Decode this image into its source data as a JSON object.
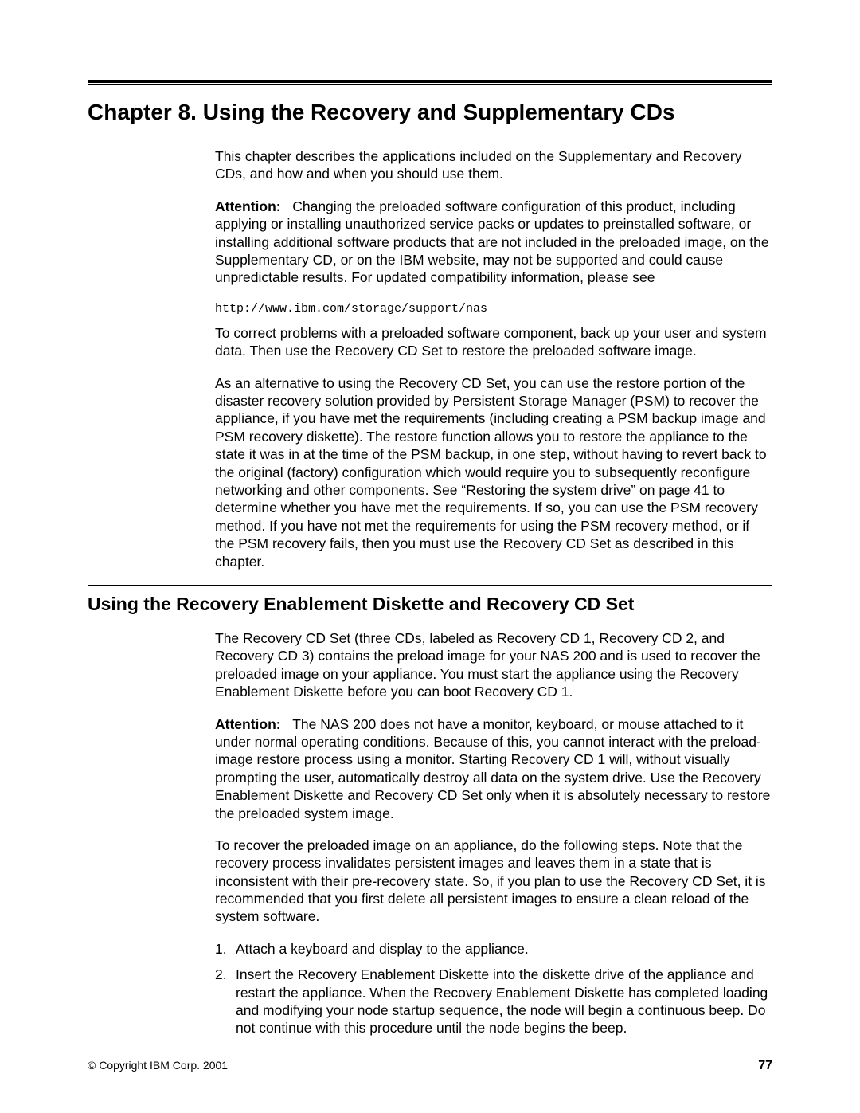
{
  "chapter": {
    "title": "Chapter 8. Using the Recovery and Supplementary CDs",
    "intro": "This chapter describes the applications included on the Supplementary and Recovery CDs, and how and when you should use them.",
    "attention1_label": "Attention:",
    "attention1_text": "Changing the preloaded software configuration of this product, including applying or installing unauthorized service packs or updates to preinstalled software, or installing additional software products that are not included in the preloaded image, on the Supplementary CD, or on the IBM website, may not be supported and could cause unpredictable results. For updated compatibility information, please see",
    "url": "http://www.ibm.com/storage/support/nas",
    "para2": "To correct problems with a preloaded software component, back up your user and system data. Then use the Recovery CD Set to restore the preloaded software image.",
    "para3": "As an alternative to using the Recovery CD Set, you can use the restore portion of the disaster recovery solution provided by Persistent Storage Manager (PSM) to recover the appliance, if you have met the requirements (including creating a PSM backup image and PSM recovery diskette). The restore function allows you to restore the appliance to the state it was in at the time of the PSM backup, in one step, without having to revert back to the original (factory) configuration which would require you to subsequently reconfigure networking and other components. See “Restoring the system drive” on page 41 to determine whether you have met the requirements. If so, you can use the PSM recovery method. If you have not met the requirements for using the PSM recovery method, or if the PSM recovery fails, then you must use the Recovery CD Set as described in this chapter."
  },
  "section": {
    "title": "Using the Recovery Enablement Diskette and Recovery CD Set",
    "para1": "The Recovery CD Set (three CDs, labeled as Recovery CD 1, Recovery CD 2, and Recovery CD 3) contains the preload image for your NAS 200 and is used to recover the preloaded image on your appliance. You must start the appliance using the Recovery Enablement Diskette before you can boot Recovery CD 1.",
    "attention2_label": "Attention:",
    "attention2_text": "The NAS 200 does not have a monitor, keyboard, or mouse attached to it under normal operating conditions. Because of this, you cannot interact with the preload-image restore process using a monitor. Starting Recovery CD 1 will, without visually prompting the user, automatically destroy all data on the system drive. Use the Recovery Enablement Diskette and Recovery CD Set only when it is absolutely necessary to restore the preloaded system image.",
    "para3": "To recover the preloaded image on an appliance, do the following steps. Note that the recovery process invalidates persistent images and leaves them in a state that is inconsistent with their pre-recovery state. So, if you plan to use the Recovery CD Set, it is recommended that you first delete all persistent images to ensure a clean reload of the system software.",
    "steps": {
      "n1": "1.",
      "s1": "Attach a keyboard and display to the appliance.",
      "n2": "2.",
      "s2": "Insert the Recovery Enablement Diskette into the diskette drive of the appliance and restart the appliance. When the Recovery Enablement Diskette has completed loading and modifying your node startup sequence, the node will begin a continuous beep. Do not continue with this procedure until the node begins the beep."
    }
  },
  "footer": {
    "copyright": "© Copyright IBM Corp. 2001",
    "page": "77"
  }
}
